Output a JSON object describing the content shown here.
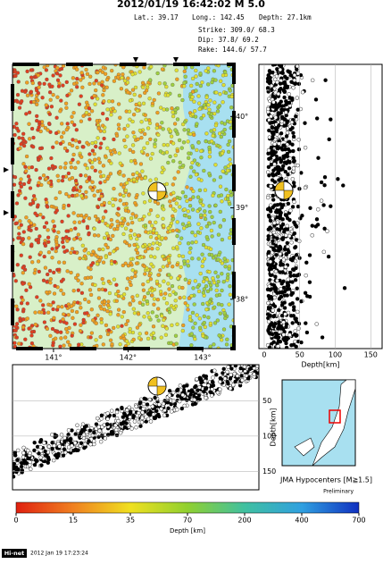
{
  "header": {
    "title": "2012/01/19 16:42:02  M 5.0",
    "lat": "Lat.: 39.17",
    "long": "Long.: 142.45",
    "depth": "Depth:  27.1km",
    "strike": "Strike:   309.0/   68.3",
    "dip": "Dip:    37.8/   69.2",
    "rake": "Rake:   144.6/   57.7"
  },
  "map": {
    "lonlim": [
      140.45,
      143.42
    ],
    "latlim": [
      37.46,
      40.57
    ],
    "lonticks": [
      {
        "value": 141,
        "label": "141°"
      },
      {
        "value": 142,
        "label": "142°"
      },
      {
        "value": 143,
        "label": "143°"
      }
    ],
    "latticks": [
      {
        "value": 40,
        "label": "40°"
      },
      {
        "value": 39,
        "label": "39°"
      },
      {
        "value": 38,
        "label": "38°"
      }
    ]
  },
  "side": {
    "xlim": [
      -7.5,
      166
    ],
    "xticks": [
      0,
      50,
      100,
      150
    ],
    "xlabel": "Depth[km]"
  },
  "section": {
    "ylim": [
      -1,
      176
    ],
    "yticks": [
      50,
      100,
      150
    ],
    "ylabel": "Depth[km]"
  },
  "inset": {
    "caption": "JMA Hypocenters [M≧1.5]",
    "note": "Preliminary"
  },
  "colorbar": {
    "ticks": [
      0,
      15,
      35,
      70,
      200,
      400,
      700
    ],
    "label": "Depth [km]",
    "colors": [
      "#e02010",
      "#f08020",
      "#f0e020",
      "#90d030",
      "#40c0a0",
      "#30a0e0",
      "#1030c0"
    ]
  },
  "footer": {
    "badge": "Hi-net",
    "stamp": "2012 Jan 19 17:23:24"
  }
}
